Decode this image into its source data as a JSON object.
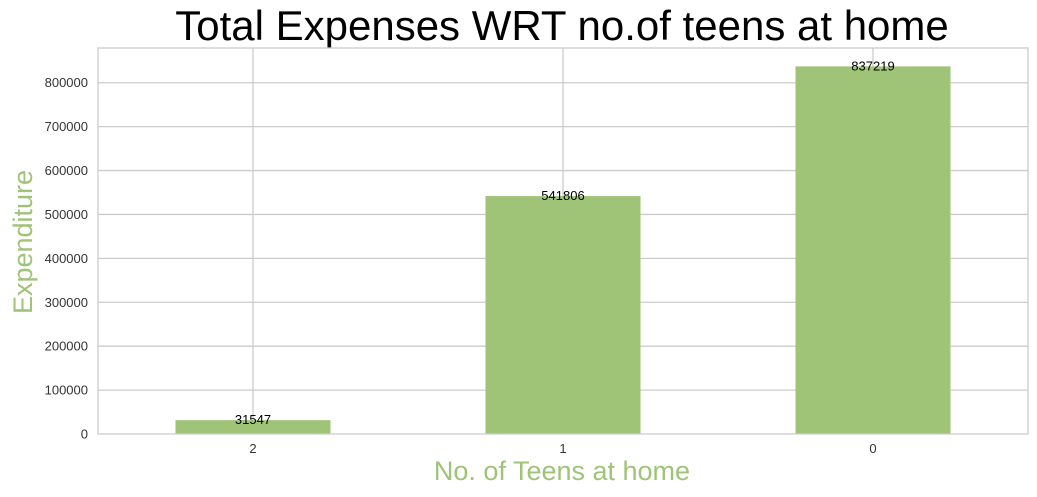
{
  "chart_data": {
    "type": "bar",
    "title": "Total Expenses WRT no.of  teens at home",
    "xlabel": "No. of Teens at home",
    "ylabel": "Expenditure",
    "categories": [
      "2",
      "1",
      "0"
    ],
    "values": [
      31547,
      541806,
      837219
    ],
    "data_labels": [
      "31547",
      "541806",
      "837219"
    ],
    "ylim": [
      0,
      879080
    ],
    "yticks": [
      0,
      100000,
      200000,
      300000,
      400000,
      500000,
      600000,
      700000,
      800000
    ],
    "ytick_labels": [
      "0",
      "100000",
      "200000",
      "300000",
      "400000",
      "500000",
      "600000",
      "700000",
      "800000"
    ],
    "grid": true,
    "colors": {
      "bar": "#9fc377",
      "axis_label": "#9fc377",
      "grid": "#cccccc"
    }
  }
}
